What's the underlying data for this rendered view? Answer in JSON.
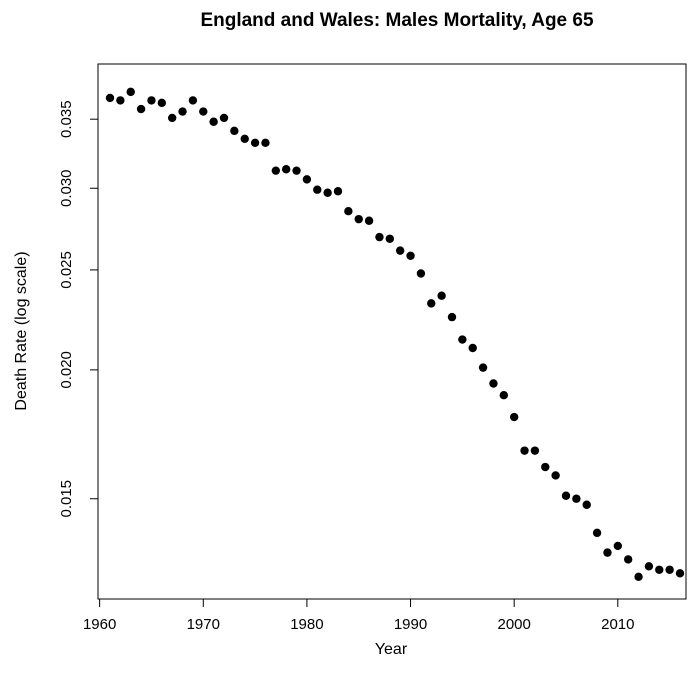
{
  "chart_data": {
    "type": "scatter",
    "title": "England and Wales: Males Mortality, Age 65",
    "xlabel": "Year",
    "ylabel": "Death Rate (log scale)",
    "y_scale": "log",
    "xlim": [
      1959,
      2018
    ],
    "ylim": [
      0.0124,
      0.0382
    ],
    "x_ticks": [
      1960,
      1970,
      1980,
      1990,
      2000,
      2010
    ],
    "x_tick_labels": [
      "1960",
      "1970",
      "1980",
      "1990",
      "2000",
      "2010"
    ],
    "y_ticks": [
      0.015,
      0.02,
      0.025,
      0.03,
      0.035
    ],
    "y_tick_labels": [
      "0.015",
      "0.020",
      "0.025",
      "0.030",
      "0.035"
    ],
    "grid": false,
    "legend": "none",
    "marker_color": "#000000",
    "x": [
      1961,
      1962,
      1963,
      1964,
      1965,
      1966,
      1967,
      1968,
      1969,
      1970,
      1971,
      1972,
      1973,
      1974,
      1975,
      1976,
      1977,
      1978,
      1979,
      1980,
      1981,
      1982,
      1983,
      1984,
      1985,
      1986,
      1987,
      1988,
      1989,
      1990,
      1991,
      1992,
      1993,
      1994,
      1995,
      1996,
      1997,
      1998,
      1999,
      2000,
      2001,
      2002,
      2003,
      2004,
      2005,
      2006,
      2007,
      2008,
      2009,
      2010,
      2011,
      2012,
      2013,
      2014,
      2015,
      2016
    ],
    "y": [
      0.0367,
      0.0365,
      0.0372,
      0.0358,
      0.0365,
      0.0363,
      0.0351,
      0.0356,
      0.0365,
      0.0356,
      0.0348,
      0.0351,
      0.0341,
      0.0335,
      0.0332,
      0.0332,
      0.0312,
      0.0313,
      0.0312,
      0.0306,
      0.0299,
      0.0297,
      0.0298,
      0.0285,
      0.028,
      0.0279,
      0.0269,
      0.0268,
      0.0261,
      0.0258,
      0.0248,
      0.0232,
      0.0236,
      0.0225,
      0.0214,
      0.021,
      0.0201,
      0.0194,
      0.0189,
      0.018,
      0.0167,
      0.0167,
      0.0161,
      0.0158,
      0.0151,
      0.015,
      0.0148,
      0.0139,
      0.0133,
      0.0135,
      0.0131,
      0.0126,
      0.0129,
      0.0128,
      0.0128,
      0.0127
    ]
  }
}
